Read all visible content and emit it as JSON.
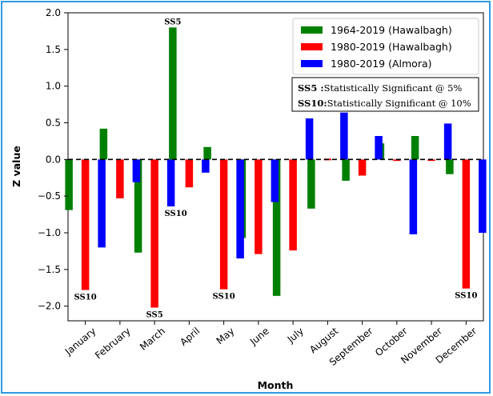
{
  "chart_data": {
    "type": "bar",
    "xlabel": "Month",
    "ylabel": "Z value",
    "ylim": [
      -2.2,
      2.0
    ],
    "yticks": [
      -2.0,
      -1.5,
      -1.0,
      -0.5,
      0.0,
      0.5,
      1.0,
      1.5,
      2.0
    ],
    "ytick_labels": [
      "−2.0",
      "−1.5",
      "−1.0",
      "−0.5",
      "0.0",
      "0.5",
      "1.0",
      "1.5",
      "2.0"
    ],
    "categories": [
      "January",
      "February",
      "March",
      "April",
      "May",
      "June",
      "July",
      "August",
      "September",
      "October",
      "November",
      "December"
    ],
    "series": [
      {
        "name": "1964-2019 (Hawalbagh)",
        "color": "#008000",
        "values": [
          -0.69,
          0.42,
          -1.27,
          1.8,
          0.17,
          -1.07,
          -1.86,
          -0.67,
          -0.29,
          0.22,
          0.32,
          -0.2
        ]
      },
      {
        "name": "1980-2019 (Hawalbagh)",
        "color": "#ff0000",
        "values": [
          -1.78,
          -0.53,
          -2.02,
          -0.38,
          -1.77,
          -1.29,
          -1.24,
          0.0,
          -0.22,
          -0.02,
          -0.02,
          -1.76
        ]
      },
      {
        "name": "1980-2019 (Almora)",
        "color": "#0000ff",
        "values": [
          -1.2,
          -0.31,
          -0.64,
          -0.18,
          -1.35,
          -0.58,
          0.56,
          0.64,
          0.32,
          -1.02,
          0.49,
          -1.0
        ]
      }
    ],
    "zero_line": {
      "value": 0.0,
      "style": "dashed",
      "color": "#000000"
    },
    "significance_labels": [
      {
        "text": "SS10",
        "category": "January",
        "series": 1
      },
      {
        "text": "SS5",
        "category": "March",
        "series": 1
      },
      {
        "text": "SS10",
        "category": "March",
        "series": 2
      },
      {
        "text": "SS5",
        "category": "April",
        "series": 0
      },
      {
        "text": "SS10",
        "category": "May",
        "series": 1
      },
      {
        "text": "SS10",
        "category": "December",
        "series": 1
      }
    ],
    "legend_position": "top-right",
    "note": [
      {
        "key": "SS5 :",
        "text": "Statistically Significant @ 5%"
      },
      {
        "key": "SS10:",
        "text": "Statistically Significant @ 10%"
      }
    ],
    "grid": false
  }
}
